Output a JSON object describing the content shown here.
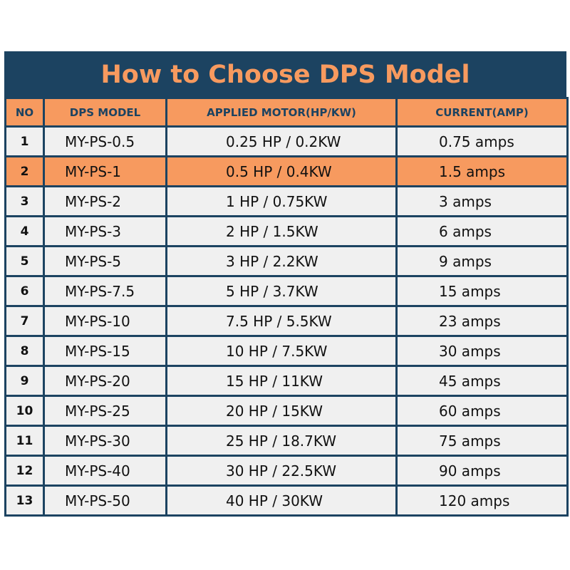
{
  "title": "How to Choose DPS Model",
  "colors": {
    "header_bg": "#1c4361",
    "accent": "#f79a5f",
    "cell_bg": "#f0f0f0"
  },
  "columns": [
    "NO",
    "DPS MODEL",
    "APPLIED MOTOR(HP/KW)",
    "CURRENT(AMP)"
  ],
  "highlighted_row": 2,
  "rows": [
    {
      "no": "1",
      "model": "MY-PS-0.5",
      "motor": "0.25 HP / 0.2KW",
      "current": "0.75 amps"
    },
    {
      "no": "2",
      "model": "MY-PS-1",
      "motor": "0.5 HP / 0.4KW",
      "current": "1.5 amps"
    },
    {
      "no": "3",
      "model": "MY-PS-2",
      "motor": "1 HP / 0.75KW",
      "current": "3 amps"
    },
    {
      "no": "4",
      "model": "MY-PS-3",
      "motor": "2 HP / 1.5KW",
      "current": "6 amps"
    },
    {
      "no": "5",
      "model": "MY-PS-5",
      "motor": "3 HP / 2.2KW",
      "current": "9 amps"
    },
    {
      "no": "6",
      "model": "MY-PS-7.5",
      "motor": "5 HP / 3.7KW",
      "current": "15 amps"
    },
    {
      "no": "7",
      "model": "MY-PS-10",
      "motor": "7.5 HP / 5.5KW",
      "current": "23 amps"
    },
    {
      "no": "8",
      "model": "MY-PS-15",
      "motor": "10 HP / 7.5KW",
      "current": "30 amps"
    },
    {
      "no": "9",
      "model": "MY-PS-20",
      "motor": "15 HP / 11KW",
      "current": "45 amps"
    },
    {
      "no": "10",
      "model": "MY-PS-25",
      "motor": "20 HP / 15KW",
      "current": "60 amps"
    },
    {
      "no": "11",
      "model": "MY-PS-30",
      "motor": "25 HP / 18.7KW",
      "current": "75 amps"
    },
    {
      "no": "12",
      "model": "MY-PS-40",
      "motor": "30 HP / 22.5KW",
      "current": "90 amps"
    },
    {
      "no": "13",
      "model": "MY-PS-50",
      "motor": "40 HP / 30KW",
      "current": "120 amps"
    }
  ]
}
